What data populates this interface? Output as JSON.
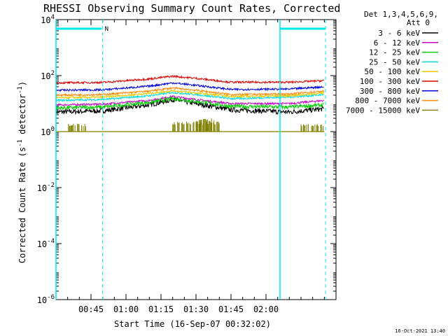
{
  "chart_data": {
    "type": "line",
    "title": "RHESSI Observing Summary Count Rates, Corrected",
    "xlabel": "Start Time (16-Sep-07 00:32:02)",
    "ylabel_main": "Corrected Count Rate (s",
    "ylabel_sup1": "-1",
    "ylabel_mid": " detector",
    "ylabel_sup2": "-1",
    "ylabel_end": ")",
    "yscale": "log",
    "ylim": [
      1e-06,
      10000.0
    ],
    "y_ticks": [
      {
        "value": 10000.0,
        "base": "10",
        "exp": "4"
      },
      {
        "value": 100.0,
        "base": "10",
        "exp": "2"
      },
      {
        "value": 1,
        "base": "10",
        "exp": "0"
      },
      {
        "value": 0.01,
        "base": "10",
        "exp": "-2"
      },
      {
        "value": 0.0001,
        "base": "10",
        "exp": "-4"
      },
      {
        "value": 1e-06,
        "base": "10",
        "exp": "-6"
      }
    ],
    "xlim_minutes": [
      0,
      120
    ],
    "x_ticks": [
      {
        "minutes": 15.0,
        "label": "00:45"
      },
      {
        "minutes": 30.0,
        "label": "01:00"
      },
      {
        "minutes": 45.0,
        "label": "01:15"
      },
      {
        "minutes": 60.0,
        "label": "01:30"
      },
      {
        "minutes": 75.0,
        "label": "01:45"
      },
      {
        "minutes": 90.0,
        "label": "02:00"
      }
    ],
    "legend_header": [
      "Det 1,3,4,5,6,9,",
      "Att 0"
    ],
    "legend_position": "right",
    "series": [
      {
        "name": "3 - 6 keV",
        "color": "#000000",
        "values": [
          [
            0,
            5
          ],
          [
            20,
            5.5
          ],
          [
            40,
            9
          ],
          [
            50,
            14
          ],
          [
            60,
            10
          ],
          [
            75,
            6
          ],
          [
            100,
            5
          ],
          [
            115,
            6.5
          ]
        ]
      },
      {
        "name": "6 - 12 keV",
        "color": "#cc00cc",
        "values": [
          [
            0,
            9
          ],
          [
            20,
            9.5
          ],
          [
            40,
            13
          ],
          [
            50,
            18
          ],
          [
            60,
            14
          ],
          [
            75,
            10
          ],
          [
            100,
            10
          ],
          [
            115,
            13
          ]
        ]
      },
      {
        "name": "12 - 25 keV",
        "color": "#00cc00",
        "values": [
          [
            0,
            7
          ],
          [
            20,
            7.5
          ],
          [
            40,
            11
          ],
          [
            50,
            15
          ],
          [
            60,
            12
          ],
          [
            75,
            8
          ],
          [
            100,
            7.5
          ],
          [
            115,
            9
          ]
        ]
      },
      {
        "name": "25 - 50 keV",
        "color": "#00dddd",
        "values": [
          [
            0,
            13
          ],
          [
            20,
            14
          ],
          [
            40,
            19
          ],
          [
            50,
            25
          ],
          [
            60,
            21
          ],
          [
            75,
            15
          ],
          [
            100,
            17
          ],
          [
            115,
            21
          ]
        ]
      },
      {
        "name": "50 - 100 keV",
        "color": "#e8c800",
        "values": [
          [
            0,
            16
          ],
          [
            20,
            17
          ],
          [
            40,
            23
          ],
          [
            50,
            29
          ],
          [
            60,
            24
          ],
          [
            75,
            18
          ],
          [
            100,
            19
          ],
          [
            115,
            24
          ]
        ]
      },
      {
        "name": "100 - 300 keV",
        "color": "#dd0000",
        "values": [
          [
            0,
            55
          ],
          [
            20,
            57
          ],
          [
            40,
            76
          ],
          [
            50,
            95
          ],
          [
            60,
            80
          ],
          [
            75,
            58
          ],
          [
            100,
            58
          ],
          [
            115,
            66
          ]
        ]
      },
      {
        "name": "300 - 800 keV",
        "color": "#0000dd",
        "values": [
          [
            0,
            30
          ],
          [
            20,
            31
          ],
          [
            40,
            42
          ],
          [
            50,
            55
          ],
          [
            60,
            45
          ],
          [
            75,
            32
          ],
          [
            100,
            33
          ],
          [
            115,
            40
          ]
        ]
      },
      {
        "name": "800 - 7000 keV",
        "color": "#ff8800",
        "values": [
          [
            0,
            20
          ],
          [
            20,
            21
          ],
          [
            40,
            28
          ],
          [
            50,
            36
          ],
          [
            60,
            30
          ],
          [
            75,
            21
          ],
          [
            100,
            22
          ],
          [
            115,
            28
          ]
        ]
      },
      {
        "name": "7000 - 15000 keV",
        "color": "#808000",
        "values": [
          [
            0,
            1
          ],
          [
            115,
            1
          ]
        ]
      }
    ],
    "annotations": {
      "flag_label": "N",
      "footer_date": "16-Oct-2021 13:40"
    }
  }
}
